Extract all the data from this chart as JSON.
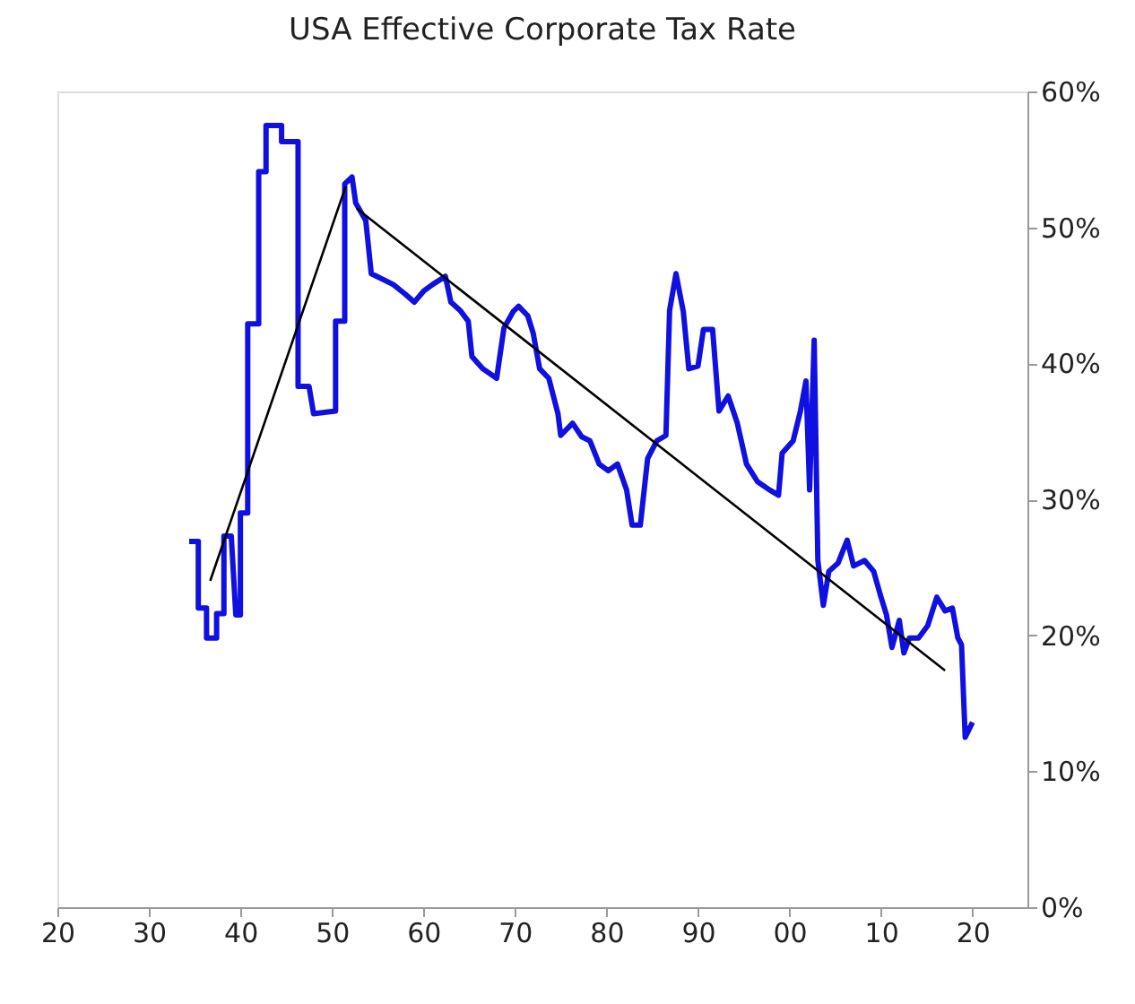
{
  "chart_data": {
    "type": "line",
    "title": "USA Effective Corporate Tax Rate",
    "xlim": [
      1920,
      2026
    ],
    "xticks": [
      {
        "value": 1920,
        "label": "20"
      },
      {
        "value": 1930,
        "label": "30"
      },
      {
        "value": 1940,
        "label": "40"
      },
      {
        "value": 1950,
        "label": "50"
      },
      {
        "value": 1960,
        "label": "60"
      },
      {
        "value": 1970,
        "label": "70"
      },
      {
        "value": 1980,
        "label": "80"
      },
      {
        "value": 1990,
        "label": "90"
      },
      {
        "value": 2000,
        "label": "00"
      },
      {
        "value": 2010,
        "label": "10"
      },
      {
        "value": 2020,
        "label": "20"
      }
    ],
    "ylim": [
      0,
      60
    ],
    "yticks": [
      {
        "value": 0,
        "label": "0%"
      },
      {
        "value": 10,
        "label": "10%"
      },
      {
        "value": 20,
        "label": "20%"
      },
      {
        "value": 30,
        "label": "30%"
      },
      {
        "value": 40,
        "label": "40%"
      },
      {
        "value": 50,
        "label": "50%"
      },
      {
        "value": 60,
        "label": "60%"
      }
    ],
    "grid": false,
    "series": [
      {
        "color": "#1010e0",
        "x": [
          1934.4,
          1935.4,
          1935.4,
          1936.3,
          1936.3,
          1937.4,
          1937.4,
          1938.2,
          1938.2,
          1939,
          1939.5,
          1940,
          1940,
          1940.8,
          1940.8,
          1942,
          1942,
          1942.8,
          1942.8,
          1944.5,
          1944.5,
          1946.3,
          1946.3,
          1947.5,
          1948,
          1950.4,
          1950.4,
          1951.4,
          1951.4,
          1952.2,
          1952.6,
          1953.7,
          1954.3,
          1956.7,
          1958,
          1959,
          1960,
          1961,
          1962.4,
          1963,
          1964,
          1964.9,
          1965.3,
          1966.5,
          1968,
          1968.8,
          1969.8,
          1970.4,
          1971.4,
          1972,
          1972.7,
          1973.7,
          1974.7,
          1975,
          1976.3,
          1977.3,
          1978.2,
          1979.2,
          1980.2,
          1981.2,
          1982.2,
          1982.8,
          1983.7,
          1984.5,
          1985.5,
          1986.5,
          1986.9,
          1987.6,
          1988.4,
          1989,
          1990,
          1990.6,
          1991.6,
          1992.3,
          1993.3,
          1994.3,
          1995.3,
          1996.5,
          1997.8,
          1998.8,
          1999.2,
          2000.4,
          2001.2,
          2001.8,
          2002.2,
          2002.7,
          2003.1,
          2003.7,
          2004.3,
          2005.3,
          2006.3,
          2007,
          2008.2,
          2009.2,
          2010,
          2010.6,
          2011.2,
          2012,
          2012.5,
          2013.1,
          2014.1,
          2015.1,
          2016.1,
          2017,
          2017.8,
          2018.4,
          2018.8,
          2019.2,
          2020
        ],
        "values": [
          26.9,
          26.9,
          22,
          22,
          19.8,
          19.8,
          21.6,
          21.6,
          27.3,
          27.3,
          21.5,
          21.5,
          29,
          29,
          42.9,
          42.9,
          54.1,
          54.1,
          57.5,
          57.5,
          56.3,
          56.3,
          38.3,
          38.3,
          36.3,
          36.5,
          43.1,
          43.1,
          53.2,
          53.7,
          51.8,
          50.5,
          46.6,
          45.8,
          45.1,
          44.5,
          45.3,
          45.8,
          46.4,
          44.5,
          43.9,
          43.1,
          40.5,
          39.6,
          38.9,
          42.6,
          43.8,
          44.2,
          43.5,
          42.2,
          39.6,
          38.9,
          36.3,
          34.7,
          35.6,
          34.6,
          34.3,
          32.6,
          32.1,
          32.6,
          30.7,
          28.1,
          28.1,
          33,
          34.3,
          34.7,
          43.9,
          46.6,
          43.8,
          39.6,
          39.8,
          42.5,
          42.5,
          36.5,
          37.6,
          35.6,
          32.6,
          31.3,
          30.7,
          30.3,
          33.4,
          34.3,
          36.5,
          38.7,
          30.7,
          41.7,
          25.5,
          22.2,
          24.7,
          25.3,
          27,
          25.1,
          25.5,
          24.7,
          22.8,
          21.5,
          19.1,
          21.1,
          18.7,
          19.8,
          19.8,
          20.7,
          22.8,
          21.8,
          22,
          19.8,
          19.3,
          12.5,
          13.6
        ]
      },
      {
        "type": "line",
        "color": "#000000",
        "x": [
          1936.7,
          1951.5
        ],
        "values": [
          24,
          53
        ]
      },
      {
        "type": "line",
        "color": "#000000",
        "x": [
          1952.7,
          2017
        ],
        "values": [
          51.4,
          17.4
        ]
      }
    ]
  }
}
